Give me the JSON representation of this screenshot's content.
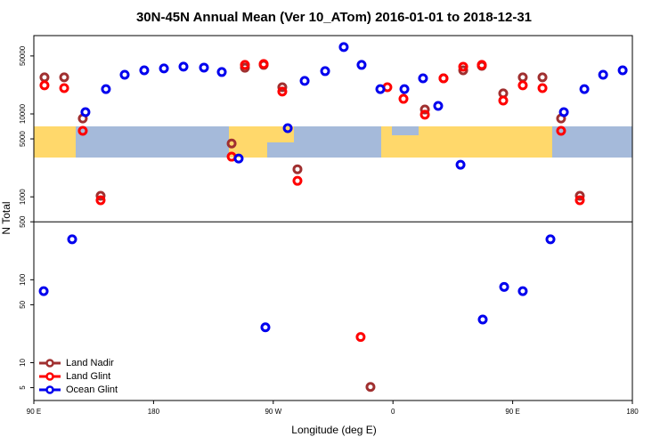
{
  "chart_data": {
    "type": "scatter",
    "title": "30N-45N Annual Mean (Ver 10_ATom)   2016-01-01 to 2018-12-31",
    "x_label": "Longitude (deg E)",
    "y_label": "N Total",
    "xlim": [
      90,
      540
    ],
    "ylim": [
      3.5,
      88000
    ],
    "log_y": true,
    "hline": 500,
    "legend": "lower left",
    "xticks": [
      {
        "value": 90,
        "label": "90 E"
      },
      180,
      {
        "value": 270,
        "label": "90 W"
      },
      {
        "value": 360,
        "label": "0"
      },
      {
        "value": 450,
        "label": "90 E"
      },
      {
        "value": 540,
        "label": "180"
      }
    ],
    "yticks": [
      5,
      10,
      50,
      100,
      500,
      1000,
      5000,
      10000,
      50000
    ],
    "series": [
      {
        "name": "Land Nadir",
        "color": "#a03030",
        "x": [
          98.0,
          112.8,
          126.8,
          140.2,
          238.7,
          248.7,
          262.8,
          276.8,
          288.2,
          343.1,
          384.0,
          398.0,
          412.8,
          426.8,
          442.9,
          457.6,
          472.4,
          486.4,
          500.5
        ],
        "values": [
          27600,
          27600,
          8800,
          1030,
          4400,
          36000,
          39000,
          21000,
          2150,
          5.1,
          11300,
          26900,
          33600,
          38000,
          17700,
          27600,
          27600,
          8800,
          1030
        ]
      },
      {
        "name": "Land Glint",
        "color": "#ff0000",
        "x": [
          98.0,
          112.8,
          126.8,
          140.2,
          238.7,
          248.7,
          262.8,
          276.8,
          288.2,
          335.7,
          355.8,
          367.9,
          384.0,
          398.0,
          412.8,
          426.8,
          442.9,
          457.6,
          472.4,
          486.4,
          500.5
        ],
        "values": [
          22100,
          20500,
          6250,
          910,
          3050,
          39000,
          40000,
          18600,
          1560,
          20.4,
          21000,
          15200,
          9800,
          26900,
          37100,
          39000,
          14500,
          22100,
          20500,
          6250,
          910
        ]
      },
      {
        "name": "Ocean Glint",
        "color": "#0000ee",
        "x": [
          97.4,
          118.8,
          128.8,
          144.2,
          158.3,
          173.0,
          187.8,
          202.5,
          217.9,
          231.3,
          244.0,
          264.1,
          280.9,
          293.6,
          309.0,
          323.0,
          336.4,
          350.5,
          368.6,
          382.6,
          394.0,
          410.8,
          427.5,
          443.6,
          457.6,
          478.4,
          488.5,
          503.9,
          518.0,
          532.7
        ],
        "values": [
          73,
          308,
          10500,
          19900,
          29700,
          33600,
          35400,
          37200,
          36200,
          32000,
          2900,
          26.7,
          6730,
          25000,
          32800,
          64000,
          39000,
          19900,
          19900,
          26900,
          12500,
          2440,
          33.2,
          82,
          73,
          308,
          10500,
          19900,
          29700,
          33600
        ]
      }
    ]
  }
}
